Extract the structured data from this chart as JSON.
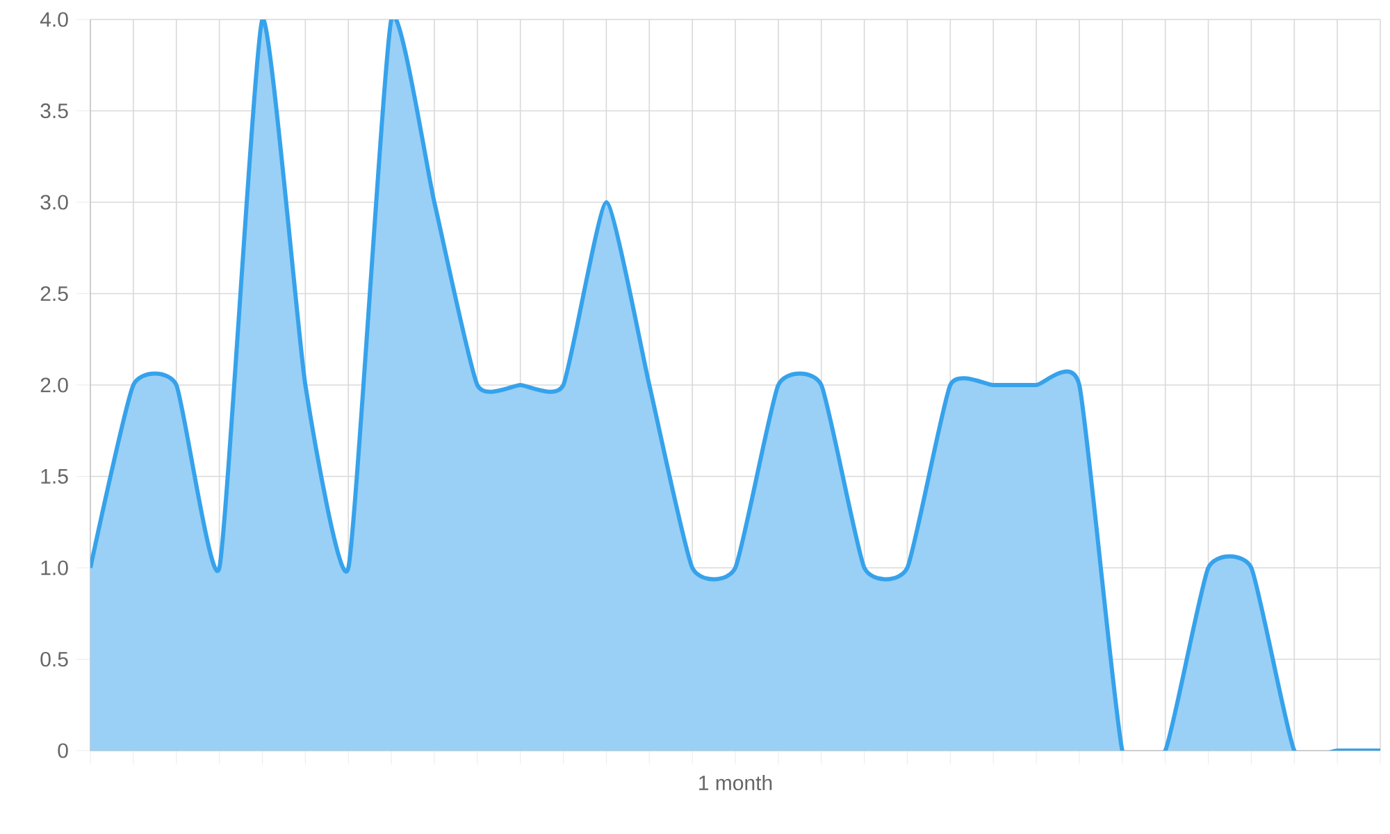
{
  "chart_data": {
    "type": "area",
    "categories": [
      null,
      null,
      null,
      null,
      null,
      null,
      null,
      null,
      null,
      null,
      null,
      null,
      null,
      null,
      null,
      "1 month",
      null,
      null,
      null,
      null,
      null,
      null,
      null,
      null,
      null,
      null,
      null,
      null,
      null,
      null,
      null
    ],
    "series": [
      {
        "color": "#36a2eb",
        "values": [
          1,
          2,
          2,
          1,
          4,
          2,
          1,
          4,
          3,
          2,
          2,
          2,
          3,
          2,
          1,
          1,
          2,
          2,
          1,
          1,
          2,
          2,
          2,
          2,
          0,
          0,
          1,
          1,
          0,
          0,
          0
        ]
      }
    ],
    "ylim": [
      0,
      4
    ],
    "yticks": [
      0,
      0.5,
      {
        "value": 1,
        "label": "1.0"
      },
      1.5,
      {
        "value": 2,
        "label": "2.0"
      },
      2.5,
      {
        "value": 3,
        "label": "3.0"
      },
      3.5,
      {
        "value": 4,
        "label": "4.0"
      }
    ],
    "grid": true,
    "marker": "none",
    "line_style": "solid"
  }
}
